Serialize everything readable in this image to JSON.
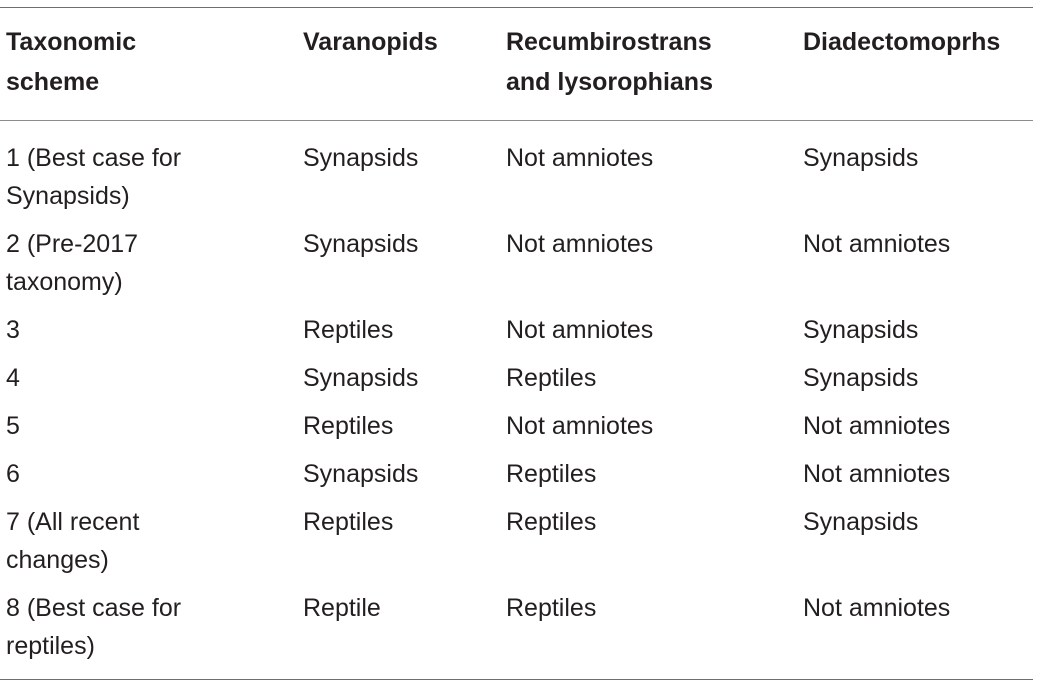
{
  "table": {
    "headers": [
      "Taxonomic\nscheme",
      "Varanopids",
      "Recumbirostrans\nand lysorophians",
      "Diadectomoprhs"
    ],
    "header_lines": [
      [
        "Taxonomic",
        "scheme"
      ],
      [
        "Varanopids"
      ],
      [
        "Recumbirostrans",
        "and lysorophians"
      ],
      [
        "Diadectomoprhs"
      ]
    ],
    "rows": [
      {
        "scheme_lines": [
          "1 (Best case for",
          "Synapsids)"
        ],
        "varanopids": "Synapsids",
        "recumbirostrans": "Not amniotes",
        "diadectomorphs": "Synapsids"
      },
      {
        "scheme_lines": [
          "2 (Pre-2017",
          "taxonomy)"
        ],
        "varanopids": "Synapsids",
        "recumbirostrans": "Not amniotes",
        "diadectomorphs": "Not amniotes"
      },
      {
        "scheme_lines": [
          "3"
        ],
        "varanopids": "Reptiles",
        "recumbirostrans": "Not amniotes",
        "diadectomorphs": "Synapsids"
      },
      {
        "scheme_lines": [
          "4"
        ],
        "varanopids": "Synapsids",
        "recumbirostrans": "Reptiles",
        "diadectomorphs": "Synapsids"
      },
      {
        "scheme_lines": [
          "5"
        ],
        "varanopids": "Reptiles",
        "recumbirostrans": "Not amniotes",
        "diadectomorphs": "Not amniotes"
      },
      {
        "scheme_lines": [
          "6"
        ],
        "varanopids": "Synapsids",
        "recumbirostrans": "Reptiles",
        "diadectomorphs": "Not amniotes"
      },
      {
        "scheme_lines": [
          "7 (All recent",
          "changes)"
        ],
        "varanopids": "Reptiles",
        "recumbirostrans": "Reptiles",
        "diadectomorphs": "Synapsids"
      },
      {
        "scheme_lines": [
          "8 (Best case for",
          "reptiles)"
        ],
        "varanopids": "Reptile",
        "recumbirostrans": "Reptiles",
        "diadectomorphs": "Not amniotes"
      }
    ]
  }
}
